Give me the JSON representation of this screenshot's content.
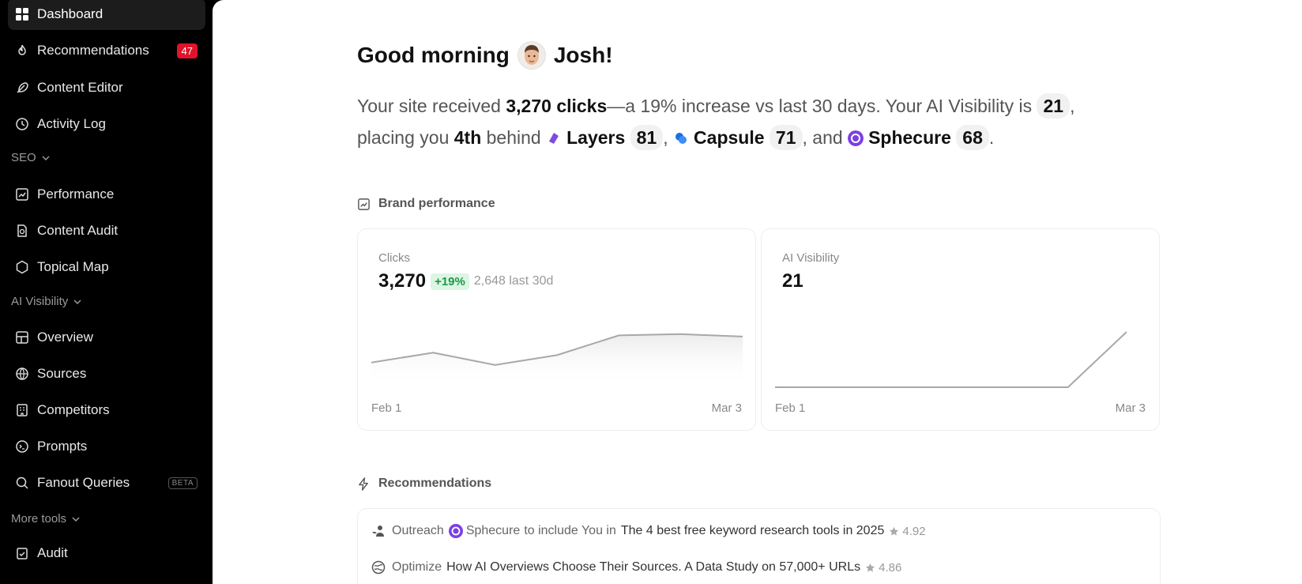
{
  "sidebar": {
    "items": [
      {
        "label": "Dashboard",
        "icon": "grid-icon"
      },
      {
        "label": "Recommendations",
        "icon": "flame-icon",
        "badge": "47"
      },
      {
        "label": "Content Editor",
        "icon": "feather-icon"
      },
      {
        "label": "Activity Log",
        "icon": "clock-icon"
      }
    ],
    "seo_header": "SEO",
    "seo_items": [
      {
        "label": "Performance",
        "icon": "chart-icon"
      },
      {
        "label": "Content Audit",
        "icon": "file-search-icon"
      },
      {
        "label": "Topical Map",
        "icon": "hexagon-icon"
      }
    ],
    "ai_header": "AI Visibility",
    "ai_items": [
      {
        "label": "Overview",
        "icon": "table-icon"
      },
      {
        "label": "Sources",
        "icon": "globe-icon"
      },
      {
        "label": "Competitors",
        "icon": "building-icon"
      },
      {
        "label": "Prompts",
        "icon": "terminal-icon"
      },
      {
        "label": "Fanout Queries",
        "icon": "search-icon",
        "badge": "BETA"
      }
    ],
    "more_header": "More tools",
    "more_items": [
      {
        "label": "Audit",
        "icon": "clipboard-check-icon"
      }
    ]
  },
  "greeting": {
    "prefix": "Good morning",
    "name": "Josh!"
  },
  "summary": {
    "t1": "Your site received ",
    "clicks": "3,270 clicks",
    "t2": "—a 19% increase vs last 30 days. Your AI Visibility is ",
    "visibility": "21",
    "t3": ",",
    "t4": "placing you ",
    "rank": "4th",
    "t5": " behind ",
    "competitors": [
      {
        "name": "Layers",
        "score": "81",
        "color": "#7c4ddc"
      },
      {
        "name": "Capsule",
        "score": "71",
        "color": "#1a6fe0"
      },
      {
        "name": "Sphecure",
        "score": "68",
        "color": "#7b3fe4"
      }
    ],
    "sep1": ",",
    "sep2": ", and",
    "end": "."
  },
  "brand_performance": {
    "title": "Brand performance",
    "clicks_card": {
      "label": "Clicks",
      "value": "3,270",
      "delta": "+19%",
      "prev": "2,648 last 30d",
      "x_start": "Feb 1",
      "x_end": "Mar 3"
    },
    "ai_card": {
      "label": "AI Visibility",
      "value": "21",
      "x_start": "Feb 1",
      "x_end": "Mar 3"
    }
  },
  "recommendations": {
    "title": "Recommendations",
    "items": [
      {
        "action": "Outreach",
        "org": "Sphecure",
        "mid": "to include You in",
        "title": "The 4 best free keyword research tools in 2025",
        "score": "4.92"
      },
      {
        "action": "Optimize",
        "org": "",
        "mid": "",
        "title": "How AI Overviews Choose Their Sources. A Data Study on 57,000+ URLs",
        "score": "4.86"
      }
    ]
  },
  "chart_data": [
    {
      "type": "area",
      "title": "Clicks",
      "x": [
        "Feb 1",
        "",
        "",
        "",
        "",
        "",
        "Mar 3"
      ],
      "values": [
        1.0,
        1.4,
        0.9,
        1.3,
        2.1,
        2.15,
        2.05
      ]
    },
    {
      "type": "line",
      "title": "AI Visibility",
      "x": [
        "Feb 1",
        "",
        "",
        "",
        "",
        "",
        "Mar 3"
      ],
      "values": [
        0,
        0,
        0,
        0,
        0,
        0,
        21
      ]
    }
  ]
}
